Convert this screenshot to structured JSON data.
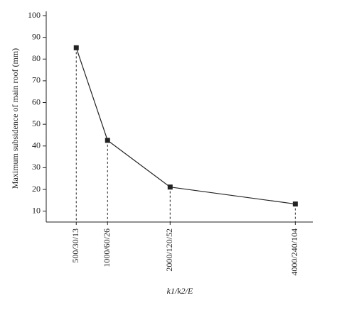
{
  "chart_data": {
    "type": "line",
    "x_label": "k1/k2/E",
    "y_label": "Maximum subsidence of main roof (mm)",
    "x": [
      500,
      1000,
      2000,
      4000
    ],
    "values": [
      85.2,
      42.6,
      21.1,
      13.3
    ],
    "color": "#222222",
    "xlim": [
      20,
      4280
    ],
    "xticks": [
      {
        "value": 500,
        "label": "500/30/13"
      },
      {
        "value": 1000,
        "label": "1000/60/26"
      },
      {
        "value": 2000,
        "label": "2000/120/52"
      },
      {
        "value": 4000,
        "label": "4000/240/104"
      }
    ],
    "ylim": [
      5,
      100
    ],
    "yticks": [
      10,
      20,
      30,
      40,
      50,
      60,
      70,
      80,
      90,
      100
    ],
    "grid": false
  }
}
